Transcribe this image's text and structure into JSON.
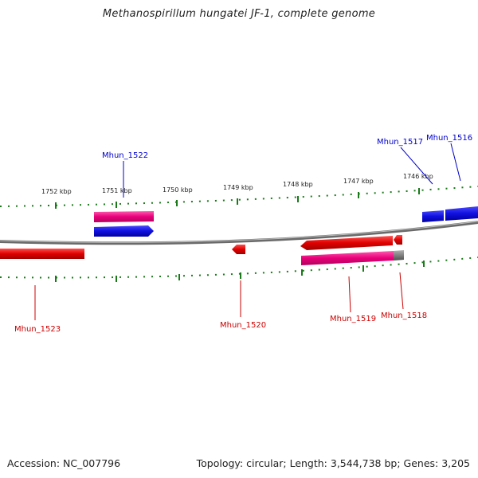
{
  "title": "Methanospirillum hungatei JF-1, complete genome",
  "footer": {
    "accession": "Accession: NC_007796",
    "stats": "Topology: circular; Length: 3,544,738 bp; Genes: 3,205"
  },
  "scale": {
    "ticks": [
      "1752 kbp",
      "1751 kbp",
      "1750 kbp",
      "1749 kbp",
      "1748 kbp",
      "1747 kbp",
      "1746 kbp"
    ]
  },
  "genes": [
    {
      "name": "Mhun_1516",
      "strand": "forward",
      "color": "#0000cc"
    },
    {
      "name": "Mhun_1517",
      "strand": "forward",
      "color": "#0000cc"
    },
    {
      "name": "Mhun_1518",
      "strand": "reverse",
      "color": "#cc0000"
    },
    {
      "name": "Mhun_1519",
      "strand": "reverse",
      "color": "#cc0000"
    },
    {
      "name": "Mhun_1520",
      "strand": "reverse",
      "color": "#cc0000"
    },
    {
      "name": "Mhun_1522",
      "strand": "forward",
      "color": "#0000cc"
    },
    {
      "name": "Mhun_1523",
      "strand": "reverse",
      "color": "#cc0000"
    }
  ],
  "colors": {
    "forward_gene": "#1010e0",
    "reverse_gene": "#e00000",
    "cds_track": "#e8007a",
    "backbone": "#808080",
    "ticks": "#1a7a1a"
  }
}
